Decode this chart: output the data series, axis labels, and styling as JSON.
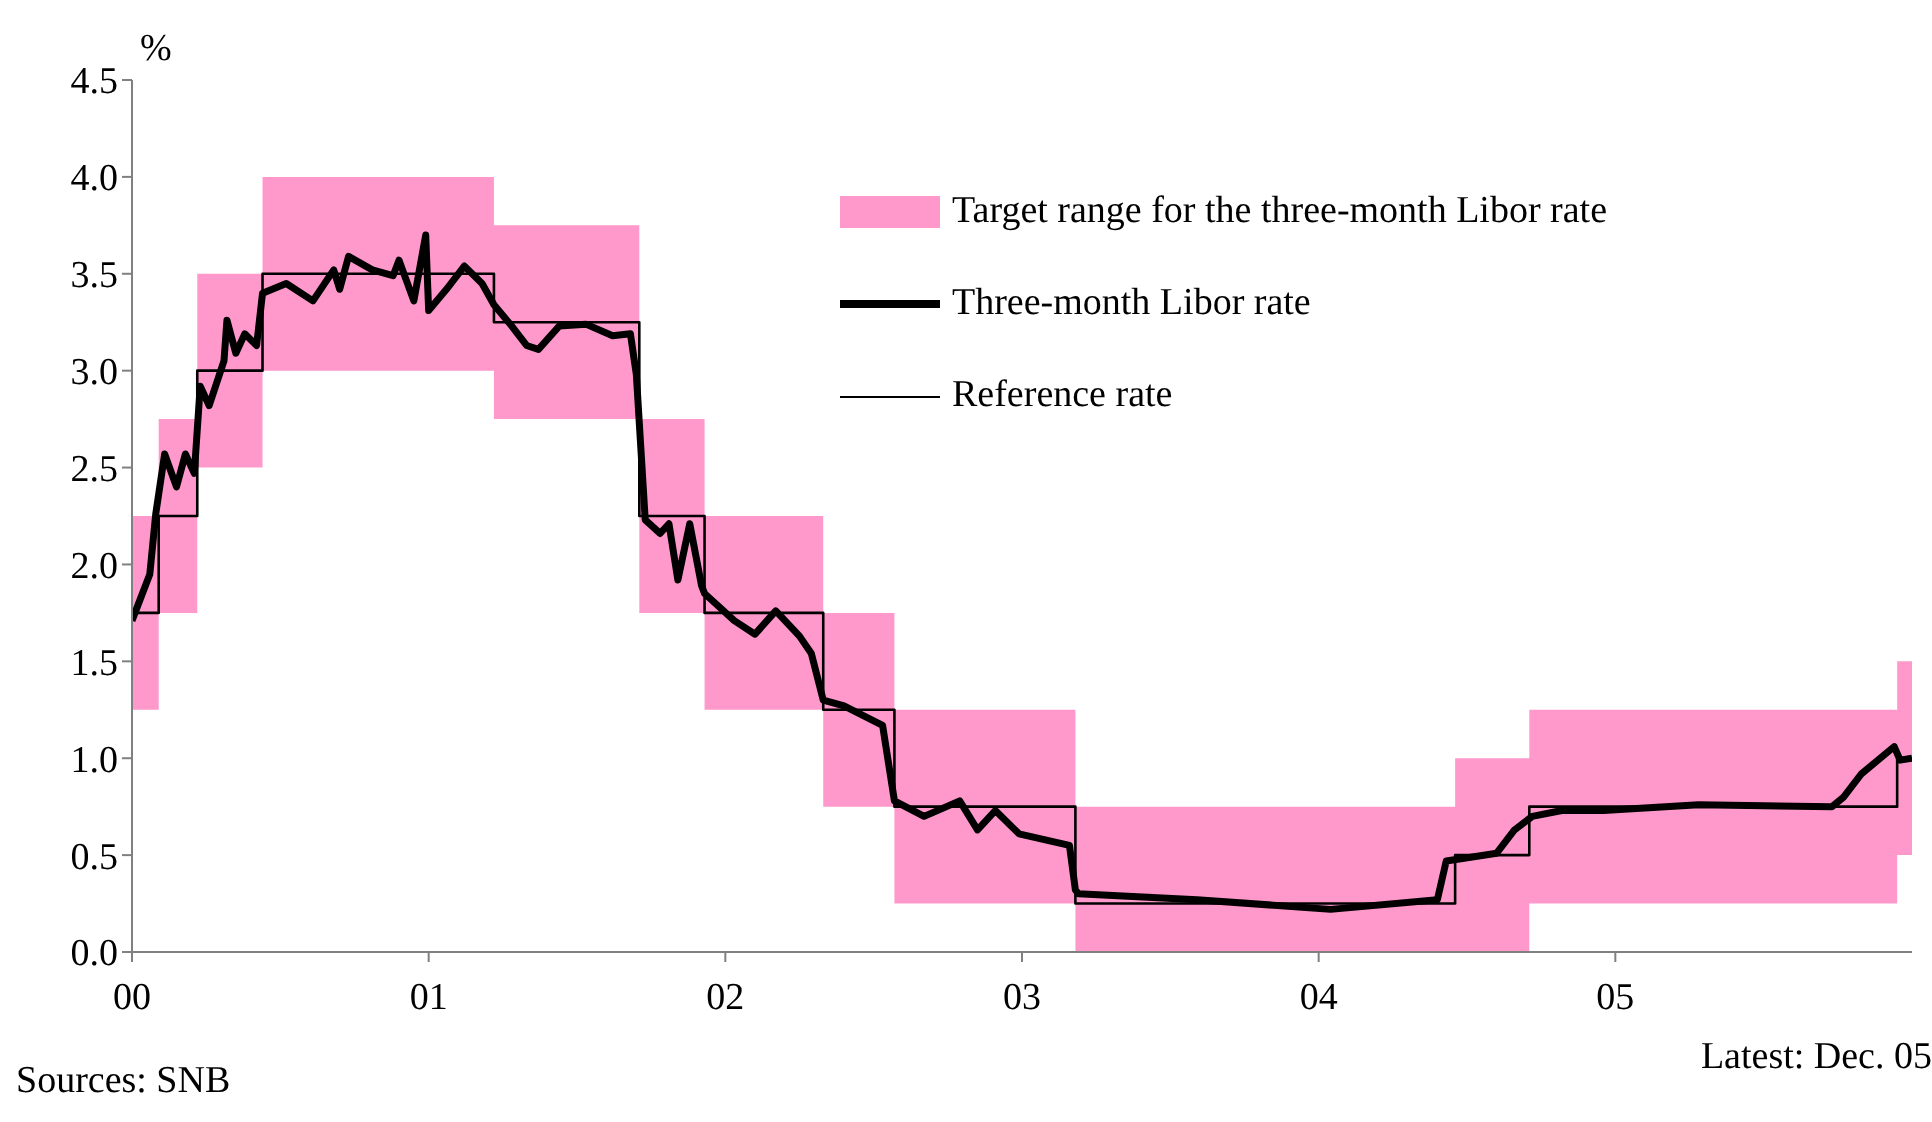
{
  "chart_data": {
    "type": "line",
    "ylabel": "%",
    "annotations": [
      "Sources: SNB",
      "Latest: Dec. 05"
    ],
    "xlim": [
      2000,
      2006
    ],
    "xticks": [
      {
        "value": 2000,
        "label": "00"
      },
      {
        "value": 2001,
        "label": "01"
      },
      {
        "value": 2002,
        "label": "02"
      },
      {
        "value": 2003,
        "label": "03"
      },
      {
        "value": 2004,
        "label": "04"
      },
      {
        "value": 2005,
        "label": "05"
      }
    ],
    "ylim": [
      0,
      4.5
    ],
    "yticks": [
      {
        "value": 0,
        "label": "0.0"
      },
      {
        "value": 0.5,
        "label": "0.5"
      },
      {
        "value": 1,
        "label": "1.0"
      },
      {
        "value": 1.5,
        "label": "1.5"
      },
      {
        "value": 2,
        "label": "2.0"
      },
      {
        "value": 2.5,
        "label": "2.5"
      },
      {
        "value": 3,
        "label": "3.0"
      },
      {
        "value": 3.5,
        "label": "3.5"
      },
      {
        "value": 4,
        "label": "4.0"
      },
      {
        "value": 4.5,
        "label": "4.5"
      }
    ],
    "legend": "top right",
    "marker": "none",
    "series": [
      {
        "name": "Target range for the three-month Libor rate",
        "type": "area",
        "color": "#ff99cc",
        "x": [
          2000,
          2000.09,
          2000.22,
          2000.44,
          2001.22,
          2001.71,
          2001.93,
          2002.33,
          2002.57,
          2003.18,
          2004.46,
          2004.71,
          2005.95,
          2006
        ],
        "values": [
          null,
          null,
          null,
          null,
          null,
          null,
          null,
          null,
          null,
          null,
          null,
          null,
          null,
          null
        ],
        "upper": [
          2.25,
          2.75,
          3.5,
          4.0,
          3.75,
          2.75,
          2.25,
          1.75,
          1.25,
          0.75,
          1.0,
          1.25,
          1.5,
          1.5
        ],
        "lower": [
          1.25,
          1.75,
          2.5,
          3.0,
          2.75,
          1.75,
          1.25,
          0.75,
          0.25,
          0,
          0,
          0.25,
          0.5,
          0.5
        ]
      },
      {
        "name": "Three-month Libor rate",
        "type": "line",
        "color": "#000000",
        "x": [
          2000,
          2000.06,
          2000.08,
          2000.11,
          2000.15,
          2000.18,
          2000.21,
          2000.23,
          2000.26,
          2000.31,
          2000.32,
          2000.35,
          2000.38,
          2000.42,
          2000.44,
          2000.52,
          2000.61,
          2000.68,
          2000.7,
          2000.73,
          2000.81,
          2000.88,
          2000.9,
          2000.95,
          2000.99,
          2001,
          2001.06,
          2001.12,
          2001.18,
          2001.22,
          2001.28,
          2001.33,
          2001.37,
          2001.44,
          2001.53,
          2001.62,
          2001.68,
          2001.7,
          2001.73,
          2001.78,
          2001.81,
          2001.84,
          2001.88,
          2001.92,
          2001.93,
          2002.03,
          2002.1,
          2002.17,
          2002.25,
          2002.29,
          2002.33,
          2002.4,
          2002.53,
          2002.57,
          2002.67,
          2002.79,
          2002.85,
          2002.91,
          2002.99,
          2003.16,
          2003.18,
          2003.19,
          2003.59,
          2004.04,
          2004.4,
          2004.43,
          2004.6,
          2004.66,
          2004.72,
          2004.82,
          2004.96,
          2005.28,
          2005.73,
          2005.77,
          2005.83,
          2005.94,
          2005.96,
          2006
        ],
        "values": [
          1.71,
          1.95,
          2.26,
          2.57,
          2.4,
          2.57,
          2.47,
          2.92,
          2.82,
          3.05,
          3.26,
          3.09,
          3.19,
          3.13,
          3.4,
          3.45,
          3.36,
          3.52,
          3.42,
          3.59,
          3.52,
          3.49,
          3.57,
          3.36,
          3.7,
          3.31,
          3.42,
          3.54,
          3.45,
          3.34,
          3.23,
          3.13,
          3.11,
          3.23,
          3.24,
          3.18,
          3.19,
          2.98,
          2.23,
          2.16,
          2.21,
          1.92,
          2.21,
          1.89,
          1.85,
          1.71,
          1.64,
          1.76,
          1.63,
          1.54,
          1.3,
          1.27,
          1.17,
          0.78,
          0.7,
          0.78,
          0.63,
          0.73,
          0.61,
          0.55,
          0.32,
          0.3,
          0.27,
          0.22,
          0.27,
          0.47,
          0.51,
          0.63,
          0.7,
          0.73,
          0.73,
          0.76,
          0.75,
          0.8,
          0.92,
          1.06,
          0.99,
          1.0
        ]
      },
      {
        "name": "Reference rate",
        "type": "step",
        "color": "#000000",
        "x": [
          2000,
          2000.09,
          2000.22,
          2000.44,
          2001.22,
          2001.71,
          2001.93,
          2002.33,
          2002.57,
          2003.18,
          2004.46,
          2004.71,
          2005.95,
          2006
        ],
        "values": [
          1.75,
          2.25,
          3.0,
          3.5,
          3.25,
          2.25,
          1.75,
          1.25,
          0.75,
          0.25,
          0.5,
          0.75,
          1.0,
          1.0
        ]
      }
    ]
  }
}
